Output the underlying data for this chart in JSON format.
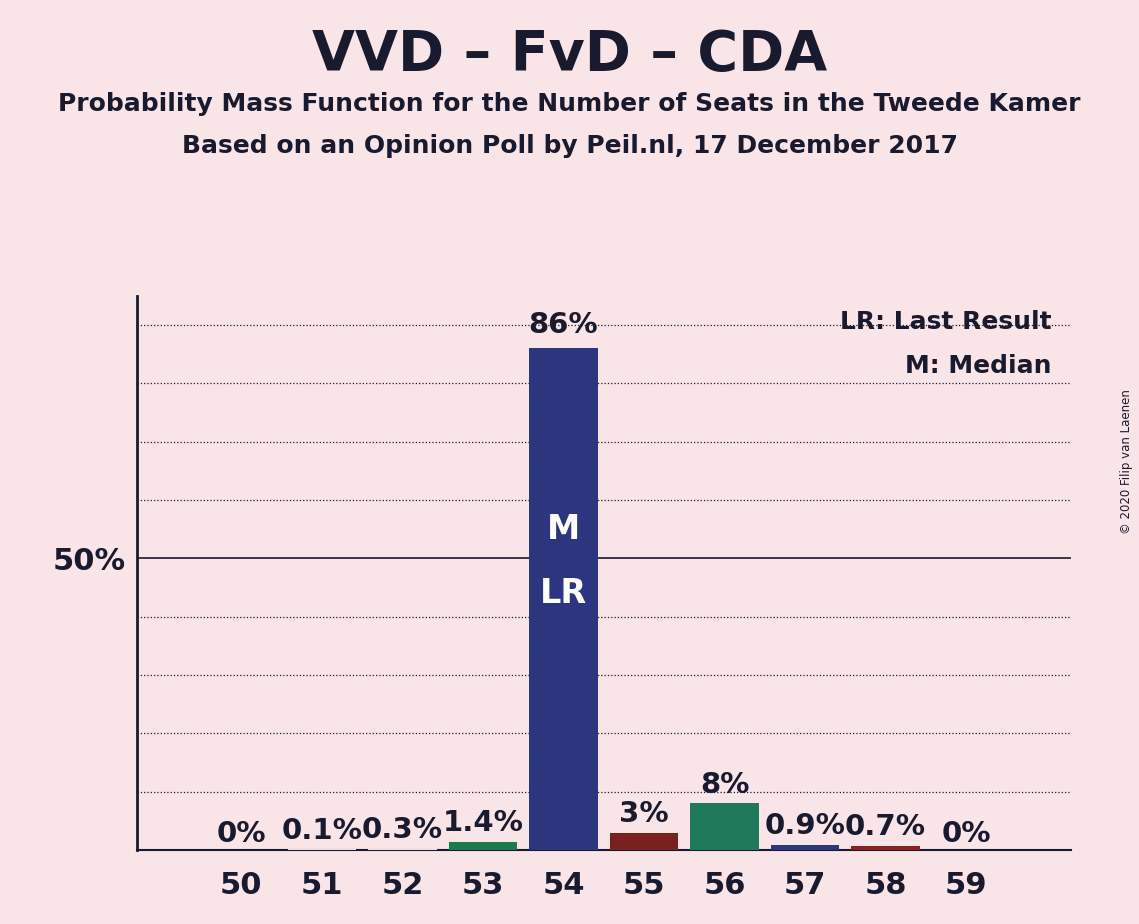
{
  "title": "VVD – FvD – CDA",
  "subtitle1": "Probability Mass Function for the Number of Seats in the Tweede Kamer",
  "subtitle2": "Based on an Opinion Poll by Peil.nl, 17 December 2017",
  "copyright": "© 2020 Filip van Laenen",
  "seats": [
    50,
    51,
    52,
    53,
    54,
    55,
    56,
    57,
    58,
    59
  ],
  "probabilities": [
    0.0,
    0.1,
    0.3,
    1.4,
    86.0,
    3.0,
    8.0,
    0.9,
    0.7,
    0.0
  ],
  "bar_colors": [
    "#f2dde0",
    "#f2dde0",
    "#f2dde0",
    "#1e7a4a",
    "#2c3580",
    "#7b2020",
    "#1e7a5a",
    "#2c3580",
    "#8b2020",
    "#f2dde0"
  ],
  "bar_labels": [
    "0%",
    "0.1%",
    "0.3%",
    "1.4%",
    "86%",
    "3%",
    "8%",
    "0.9%",
    "0.7%",
    "0%"
  ],
  "background_color": "#f9e4e8",
  "bar_label_color_outside": "#1a1a2e",
  "legend_lr": "LR: Last Result",
  "legend_m": "M: Median",
  "ylim": [
    0,
    95
  ],
  "yticks_dotted": [
    10,
    20,
    30,
    40,
    60,
    70,
    80,
    90
  ],
  "ytick_solid": 50,
  "grid_color": "#1a1a2e",
  "title_color": "#1a1a2e",
  "title_fontsize": 40,
  "subtitle_fontsize": 18,
  "bar_label_fontsize": 21,
  "inside_label_fontsize": 24,
  "tick_label_fontsize": 22
}
